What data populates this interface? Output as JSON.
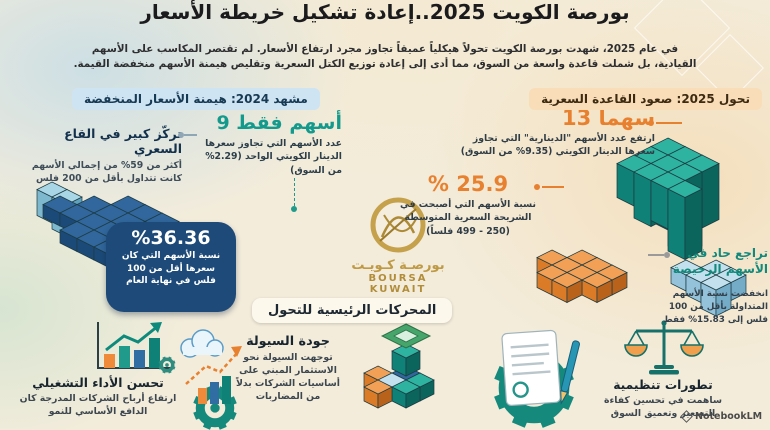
{
  "page": {
    "title": "بورصة الكويت 2025..إعادة تشكيل خريطة الأسعار",
    "subtitle": "في عام 2025، شهدت بورصة الكويت تحولاً هيكلياً عميقاً تجاوز مجرد ارتفاع الأسعار. لم تقتصر المكاسب على الأسهم القيادية، بل شملت قاعدة واسعة من السوق، مما أدى إلى إعادة توزيع الكتل السعرية وتقليص هيمنة الأسهم منخفضة القيمة.",
    "attribution": "NotebookLM"
  },
  "logo": {
    "arabic": "بورصـة كـويـت",
    "latin": "BOURSA KUWAIT"
  },
  "scene_2024": {
    "header": "مشهد 2024: هيمنة الأسعار المنخفضة",
    "bottom_concentration": {
      "title": "تركّز كبير في القاع السعري",
      "desc": "أكثر من 59% من إجمالي الأسهم كانت تتداول بأقل من 200 فلس"
    },
    "nine_stocks": {
      "value": "9 أسهم فقط",
      "desc": "عدد الأسهم التي تجاوز سعرها الدينار الكويتي الواحد (2.29% من السوق)"
    },
    "under_100_share": {
      "value": "%36.36",
      "desc": "نسبة الأسهم التي كان سعرها أقل من 100 فلس في نهاية العام"
    }
  },
  "shift_2025": {
    "header": "تحول 2025: صعود القاعدة السعرية",
    "dinar_stocks": {
      "value": "13 سهماً",
      "desc": "ارتفع عدد الأسهم \"الدينارية\" التي تجاوز سعرها الدينار الكويتي (9.35% من السوق)"
    },
    "mid_tier": {
      "value": "% 25.9",
      "desc": "نسبة الأسهم التي أصبحت في الشريحة السعرية المتوسطة (250 - 499 فلساً)"
    },
    "cheap_decline": {
      "title": "تراجع حاد في الأسهم الرخيصة",
      "desc": "انخفضت نسبة الأسهم المتداولة بأقل من 100 فلس إلى 15.83% فقط"
    }
  },
  "drivers": {
    "header": "المحركات الرئيسية للتحول",
    "operational": {
      "title": "تحسن الأداء التشغيلي",
      "desc": "ارتفاع أرباح الشركات المدرجة كان الدافع الأساسي للنمو"
    },
    "liquidity": {
      "title": "جودة السيولة",
      "desc": "توجهت السيولة نحو الاستثمار المبني على أساسيات الشركات بدلاً من المضاربات"
    },
    "regulatory": {
      "title": "تطورات تنظيمية",
      "desc": "ساهمت في تحسين كفاءة التسعير وتعميق السوق"
    }
  },
  "colors": {
    "teal": "#149a8c",
    "orange": "#e8812f",
    "navy": "#1c4a78",
    "gold": "#bd9440",
    "light_blue_pill": "#cfe4f2",
    "peach_pill": "#f8ddb8"
  }
}
